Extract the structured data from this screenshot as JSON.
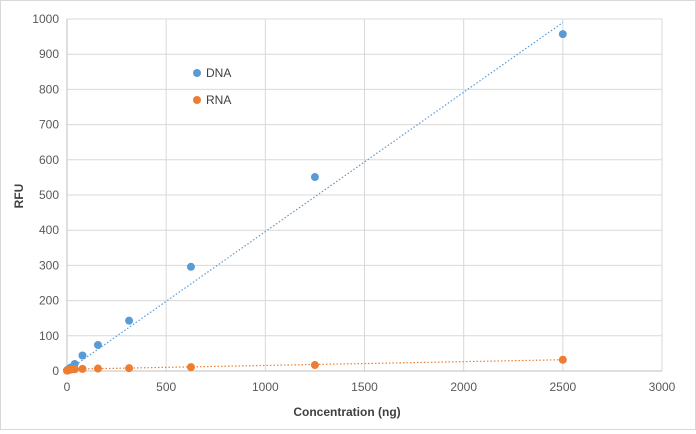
{
  "chart_data": {
    "type": "scatter",
    "xlabel": "Concentration (ng)",
    "ylabel": "RFU",
    "xlim": [
      0,
      3000
    ],
    "ylim": [
      0,
      1000
    ],
    "xticks": [
      0,
      500,
      1000,
      1500,
      2000,
      2500,
      3000
    ],
    "yticks": [
      0,
      100,
      200,
      300,
      400,
      500,
      600,
      700,
      800,
      900,
      1000
    ],
    "xtick_labels": [
      "0",
      "500",
      "1000",
      "1500",
      "2000",
      "2500",
      "3000"
    ],
    "ytick_labels": [
      "0",
      "100",
      "200",
      "300",
      "400",
      "500",
      "600",
      "700",
      "800",
      "900",
      "1000"
    ],
    "grid": true,
    "legend_placement": "inside-top-left",
    "series": [
      {
        "name": "DNA",
        "color": "#5b9bd5",
        "points": [
          {
            "x": 0,
            "y": 2
          },
          {
            "x": 5,
            "y": 4
          },
          {
            "x": 10,
            "y": 6
          },
          {
            "x": 20,
            "y": 10
          },
          {
            "x": 39,
            "y": 20
          },
          {
            "x": 78,
            "y": 44
          },
          {
            "x": 156,
            "y": 74
          },
          {
            "x": 313,
            "y": 143
          },
          {
            "x": 625,
            "y": 296
          },
          {
            "x": 1250,
            "y": 551
          },
          {
            "x": 2500,
            "y": 957
          }
        ],
        "trendline": {
          "style": "dotted",
          "from": {
            "x": 0,
            "y": 0
          },
          "to": {
            "x": 2500,
            "y": 990
          }
        }
      },
      {
        "name": "RNA",
        "color": "#ed7d31",
        "points": [
          {
            "x": 0,
            "y": 1
          },
          {
            "x": 5,
            "y": 2
          },
          {
            "x": 10,
            "y": 3
          },
          {
            "x": 20,
            "y": 4
          },
          {
            "x": 39,
            "y": 5
          },
          {
            "x": 78,
            "y": 6
          },
          {
            "x": 156,
            "y": 7
          },
          {
            "x": 313,
            "y": 8
          },
          {
            "x": 625,
            "y": 11
          },
          {
            "x": 1250,
            "y": 17
          },
          {
            "x": 2500,
            "y": 32
          }
        ],
        "trendline": {
          "style": "dotted",
          "from": {
            "x": 0,
            "y": 5
          },
          "to": {
            "x": 2500,
            "y": 32
          }
        }
      }
    ]
  }
}
